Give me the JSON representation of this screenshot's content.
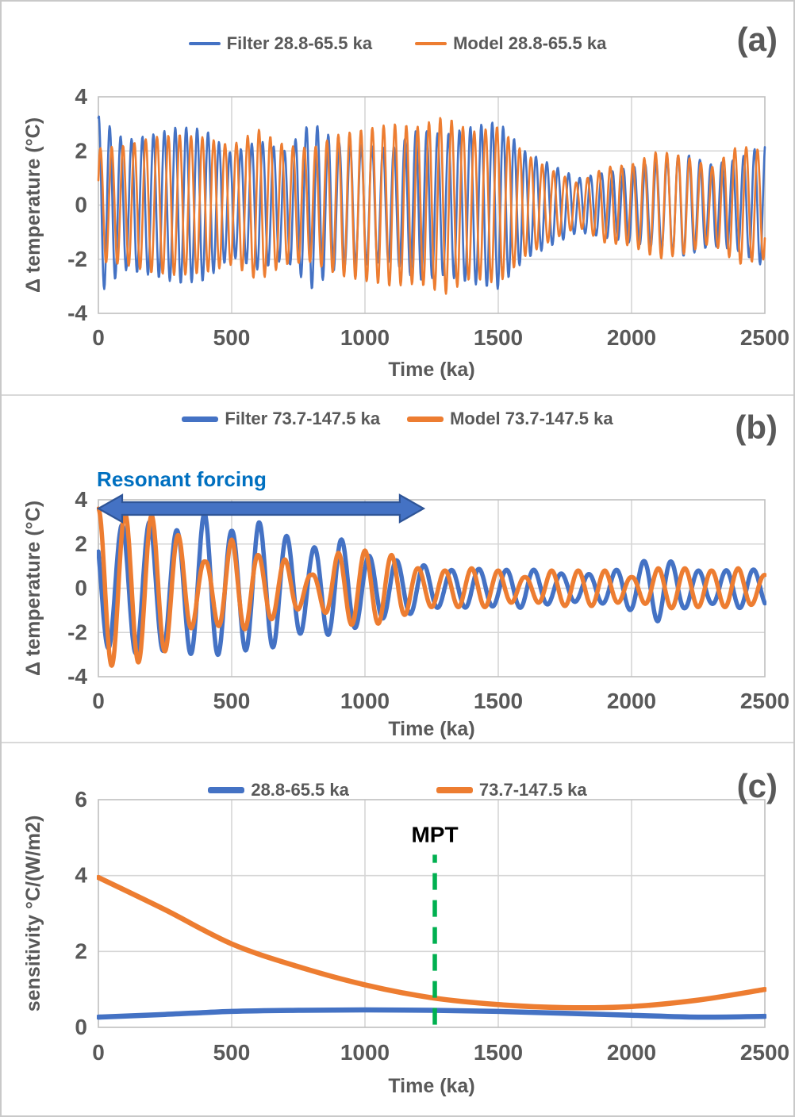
{
  "colors": {
    "blue": "#4472C4",
    "orange": "#ED7D31",
    "green": "#00B050",
    "text": "#595959",
    "grid": "#D6D6D6",
    "plot_border": "#BFBFBF",
    "resonant_text": "#0070C0",
    "arrow_fill": "#4472C4",
    "arrow_stroke": "#2F5597",
    "mpt_text": "#000000"
  },
  "panels": [
    {
      "letter": "(a)",
      "legend": [
        {
          "label": "Filter 28.8-65.5 ka",
          "color_key": "blue"
        },
        {
          "label": "Model 28.8-65.5 ka",
          "color_key": "orange"
        }
      ],
      "xlabel": "Time (ka)",
      "ylabel": "Δ temperature (°C)"
    },
    {
      "letter": "(b)",
      "legend": [
        {
          "label": "Filter 73.7-147.5 ka",
          "color_key": "blue"
        },
        {
          "label": "Model 73.7-147.5 ka",
          "color_key": "orange"
        }
      ],
      "xlabel": "Time (ka)",
      "ylabel": "Δ temperature (°C)"
    },
    {
      "letter": "(c)",
      "legend": [
        {
          "label": "28.8-65.5 ka",
          "color_key": "blue"
        },
        {
          "label": "73.7-147.5 ka",
          "color_key": "orange"
        }
      ],
      "xlabel": "Time (ka)",
      "ylabel": "sensitivity °C/(W/m2)"
    }
  ],
  "chart_data": [
    {
      "id": "a",
      "type": "line",
      "xlabel": "Time (ka)",
      "ylabel": "Δ temperature (°C)",
      "xlim": [
        0,
        2500
      ],
      "ylim": [
        -4,
        4
      ],
      "xticks": [
        0,
        500,
        1000,
        1500,
        2000,
        2500
      ],
      "yticks": [
        4,
        2,
        0,
        -2,
        -4
      ],
      "grid": true,
      "legend_position": "top-center",
      "note": "Band-pass filtered record vs model, obliquity band; quasi-sinusoidal oscillations ~41 ka period, amplitude-modulated; values reconstructed as y(t)=A(t)*sin(2*pi*t/period+phase) with A(t) interpolated from envelope samples",
      "series": [
        {
          "name": "Filter 28.8-65.5 ka",
          "color_key": "blue",
          "waveform": "amplitude_modulated_sine",
          "period_ka": 41,
          "phase_rad": 1.35,
          "envelope_dt_ka": 100,
          "envelope_amp_c": [
            3.3,
            2.4,
            2.6,
            2.9,
            2.8,
            1.9,
            2.4,
            2.0,
            3.1,
            2.3,
            2.2,
            2.1,
            2.8,
            2.6,
            2.9,
            3.1,
            2.0,
            1.5,
            1.0,
            1.2,
            1.4,
            1.6,
            1.9,
            1.5,
            1.7,
            2.3
          ]
        },
        {
          "name": "Model 28.8-65.5 ka",
          "color_key": "orange",
          "waveform": "amplitude_modulated_sine",
          "period_ka": 42.5,
          "phase_rad": 0.45,
          "envelope_dt_ka": 100,
          "envelope_amp_c": [
            2.1,
            2.2,
            2.5,
            2.6,
            2.5,
            2.2,
            2.8,
            2.2,
            2.1,
            2.6,
            2.8,
            3.0,
            2.9,
            3.3,
            2.7,
            2.9,
            1.9,
            1.3,
            0.8,
            1.4,
            1.5,
            2.0,
            1.8,
            1.4,
            2.2,
            2.0
          ]
        }
      ]
    },
    {
      "id": "b",
      "type": "line",
      "xlabel": "Time (ka)",
      "ylabel": "Δ temperature (°C)",
      "xlim": [
        0,
        2500
      ],
      "ylim": [
        -4,
        4
      ],
      "xticks": [
        0,
        500,
        1000,
        1500,
        2000,
        2500
      ],
      "yticks": [
        4,
        2,
        0,
        -2,
        -4
      ],
      "grid": true,
      "legend_position": "top-center",
      "note": "Short-eccentricity band (~100 ka period); large damped oscillations (start ~3.5 C) decaying to ~0.5-1 C after ~1200 ka; reconstructed as y(t)=A(t)*sin(2*pi*t/period+phase)",
      "series": [
        {
          "name": "Filter 73.7-147.5 ka",
          "color_key": "blue",
          "waveform": "amplitude_modulated_sine",
          "period_ka": 103,
          "phase_rad": 2.45,
          "envelope_dt_ka": 100,
          "envelope_amp_c": [
            2.6,
            2.9,
            3.0,
            2.6,
            3.4,
            2.6,
            3.0,
            2.4,
            1.8,
            2.3,
            1.5,
            1.3,
            1.1,
            0.8,
            0.9,
            0.8,
            0.9,
            0.7,
            0.6,
            0.7,
            1.0,
            1.5,
            0.9,
            0.7,
            0.9,
            0.8
          ]
        },
        {
          "name": "Model 73.7-147.5 ka",
          "color_key": "orange",
          "waveform": "amplitude_modulated_sine",
          "period_ka": 100,
          "phase_rad": 1.5708,
          "envelope_dt_ka": 100,
          "envelope_amp_c": [
            3.6,
            3.4,
            3.3,
            2.4,
            1.2,
            2.2,
            1.5,
            1.3,
            0.6,
            1.6,
            1.7,
            1.5,
            0.9,
            0.8,
            0.9,
            0.8,
            0.5,
            0.8,
            0.8,
            0.8,
            0.5,
            0.9,
            0.9,
            0.8,
            0.9,
            0.6
          ]
        }
      ],
      "annotations": {
        "arrow_label": "Resonant forcing",
        "arrow_span_ka": [
          0,
          1220
        ],
        "arrow_y_c": 4
      }
    },
    {
      "id": "c",
      "type": "line",
      "xlabel": "Time (ka)",
      "ylabel": "sensitivity °C/(W/m2)",
      "xlim": [
        0,
        2500
      ],
      "ylim": [
        0,
        6
      ],
      "xticks": [
        0,
        500,
        1000,
        1500,
        2000,
        2500
      ],
      "yticks": [
        6,
        4,
        2,
        0
      ],
      "grid": true,
      "legend_position": "top-center",
      "series": [
        {
          "name": "28.8-65.5 ka",
          "color_key": "blue",
          "points_t_ka": [
            0,
            250,
            500,
            750,
            1000,
            1250,
            1500,
            1750,
            2000,
            2250,
            2500
          ],
          "points_sensitivity": [
            0.27,
            0.34,
            0.42,
            0.45,
            0.46,
            0.45,
            0.42,
            0.37,
            0.32,
            0.27,
            0.29
          ]
        },
        {
          "name": "73.7-147.5 ka",
          "color_key": "orange",
          "points_t_ka": [
            0,
            250,
            500,
            750,
            1000,
            1250,
            1500,
            1750,
            2000,
            2250,
            2500
          ],
          "points_sensitivity": [
            3.95,
            3.1,
            2.2,
            1.6,
            1.12,
            0.78,
            0.6,
            0.52,
            0.55,
            0.72,
            1.0
          ]
        }
      ],
      "annotations": {
        "mpt_label": "MPT",
        "mpt_time_ka": 1262,
        "mpt_line_from_sensitivity": 0.07,
        "mpt_line_to_sensitivity": 4.55
      }
    }
  ]
}
